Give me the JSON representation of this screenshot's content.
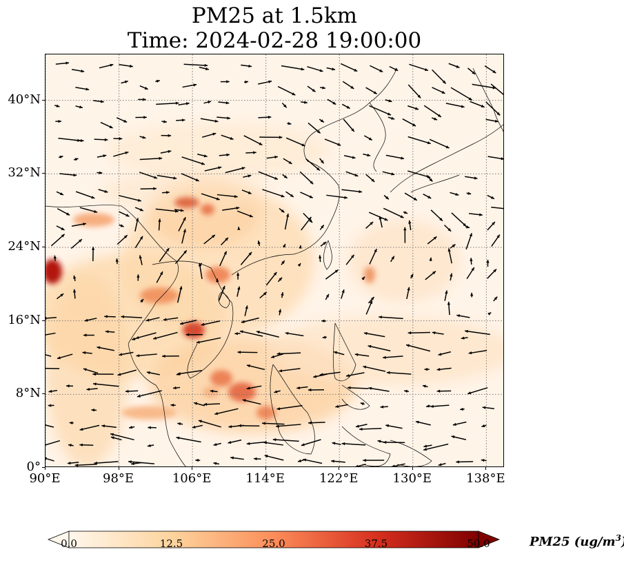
{
  "title": {
    "line1": "PM25 at 1.5km",
    "line2": "Time: 2024-02-28 19:00:00"
  },
  "map": {
    "variable": "PM25",
    "level": "1.5km",
    "extent": {
      "lon": [
        90,
        140
      ],
      "lat": [
        0,
        45
      ]
    },
    "gridlines": "dotted",
    "lat_ticks": [
      {
        "value": 0,
        "label": "0°"
      },
      {
        "value": 8,
        "label": "8°N"
      },
      {
        "value": 16,
        "label": "16°N"
      },
      {
        "value": 24,
        "label": "24°N"
      },
      {
        "value": 32,
        "label": "32°N"
      },
      {
        "value": 40,
        "label": "40°N"
      }
    ],
    "lon_ticks": [
      {
        "value": 90,
        "label": "90°E"
      },
      {
        "value": 98,
        "label": "98°E"
      },
      {
        "value": 106,
        "label": "106°E"
      },
      {
        "value": 114,
        "label": "114°E"
      },
      {
        "value": 122,
        "label": "122°E"
      },
      {
        "value": 130,
        "label": "130°E"
      },
      {
        "value": 138,
        "label": "138°E"
      }
    ]
  },
  "colorbar": {
    "title": "PM25 (ug/m",
    "title_sup": "3",
    "title_end": ")",
    "colormap": "OrRd",
    "min": 0.0,
    "max": 50.0,
    "extend": "both",
    "ticks": [
      "0.0",
      "12.5",
      "25.0",
      "37.5",
      "50.0"
    ],
    "colors": [
      "#fff7ec",
      "#fdd49e",
      "#fc8d59",
      "#d7301f",
      "#7f0000"
    ]
  }
}
